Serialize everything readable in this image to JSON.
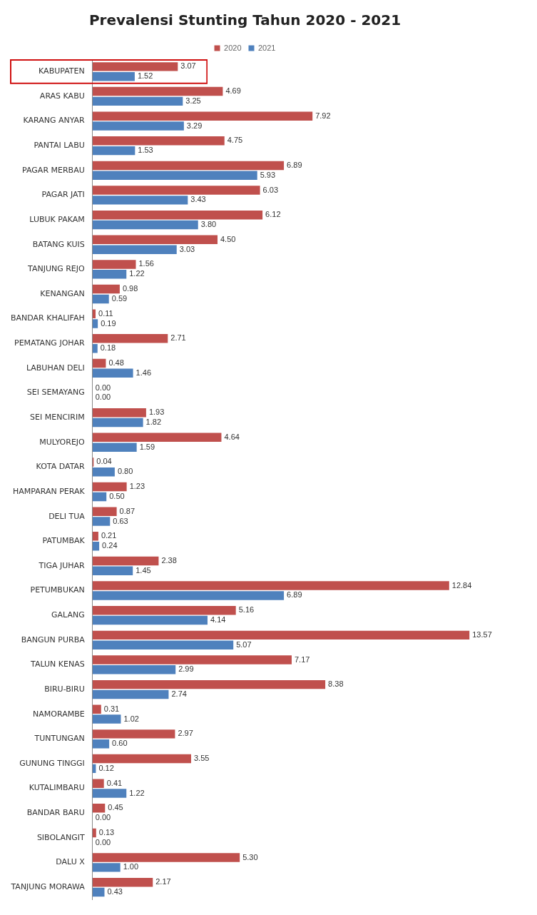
{
  "chart_data": {
    "type": "bar",
    "orientation": "horizontal",
    "title": "Prevalensi Stunting Tahun 2020 - 2021",
    "categories": [
      "KABUPATEN",
      "ARAS KABU",
      "KARANG ANYAR",
      "PANTAI LABU",
      "PAGAR MERBAU",
      "PAGAR JATI",
      "LUBUK PAKAM",
      "BATANG KUIS",
      "TANJUNG REJO",
      "KENANGAN",
      "BANDAR KHALIFAH",
      "PEMATANG JOHAR",
      "LABUHAN DELI",
      "SEI SEMAYANG",
      "SEI MENCIRIM",
      "MULYOREJO",
      "KOTA DATAR",
      "HAMPARAN PERAK",
      "DELI TUA",
      "PATUMBAK",
      "TIGA JUHAR",
      "PETUMBUKAN",
      "GALANG",
      "BANGUN PURBA",
      "TALUN KENAS",
      "BIRU-BIRU",
      "NAMORAMBE",
      "TUNTUNGAN",
      "GUNUNG TINGGI",
      "KUTALIMBARU",
      "BANDAR BARU",
      "SIBOLANGIT",
      "DALU X",
      "TANJUNG MORAWA"
    ],
    "series": [
      {
        "name": "2020",
        "color": "#c0504d",
        "values": [
          3.07,
          4.69,
          7.92,
          4.75,
          6.89,
          6.03,
          6.12,
          4.5,
          1.56,
          0.98,
          0.11,
          2.71,
          0.48,
          0,
          1.93,
          4.64,
          0.04,
          1.23,
          0.87,
          0.21,
          2.38,
          12.84,
          5.16,
          13.57,
          7.17,
          8.38,
          0.31,
          2.97,
          3.55,
          0.41,
          0.45,
          0.13,
          5.3,
          2.17
        ],
        "value_labels": [
          "3.07",
          "4.69",
          "7.92",
          "4.75",
          "6.89",
          "6.03",
          "6.12",
          "4.50",
          "1.56",
          "0.98",
          "0.11",
          "2.71",
          "0.48",
          "0.00",
          "1.93",
          "4.64",
          "0.04",
          "1.23",
          "0.87",
          "0.21",
          "2.38",
          "12.84",
          "5.16",
          "13.57",
          "7.17",
          "8.38",
          "0.31",
          "2.97",
          "3.55",
          "0.41",
          "0.45",
          "0.13",
          "5.30",
          "2.17"
        ]
      },
      {
        "name": "2021",
        "color": "#4f81bd",
        "values": [
          1.52,
          3.25,
          3.29,
          1.53,
          5.93,
          3.43,
          3.8,
          3.03,
          1.22,
          0.59,
          0.19,
          0.18,
          1.46,
          0,
          1.82,
          1.59,
          0.8,
          0.5,
          0.63,
          0.24,
          1.45,
          6.89,
          4.14,
          5.07,
          2.99,
          2.74,
          1.02,
          0.6,
          0.12,
          1.22,
          0,
          0,
          1,
          0.43
        ],
        "value_labels": [
          "1.52",
          "3.25",
          "3.29",
          "1.53",
          "5.93",
          "3.43",
          "3.80",
          "3.03",
          "1.22",
          "0.59",
          "0.19",
          "0.18",
          "1.46",
          "0.00",
          "1.82",
          "1.59",
          "0.80",
          "0.50",
          "0.63",
          "0.24",
          "1.45",
          "6.89",
          "4.14",
          "5.07",
          "2.99",
          "2.74",
          "1.02",
          "0.60",
          "0.12",
          "1.22",
          "0.00",
          "0.00",
          "1.00",
          "0.43"
        ]
      }
    ],
    "tick_labels": "y",
    "grid": false,
    "legend": "top"
  }
}
